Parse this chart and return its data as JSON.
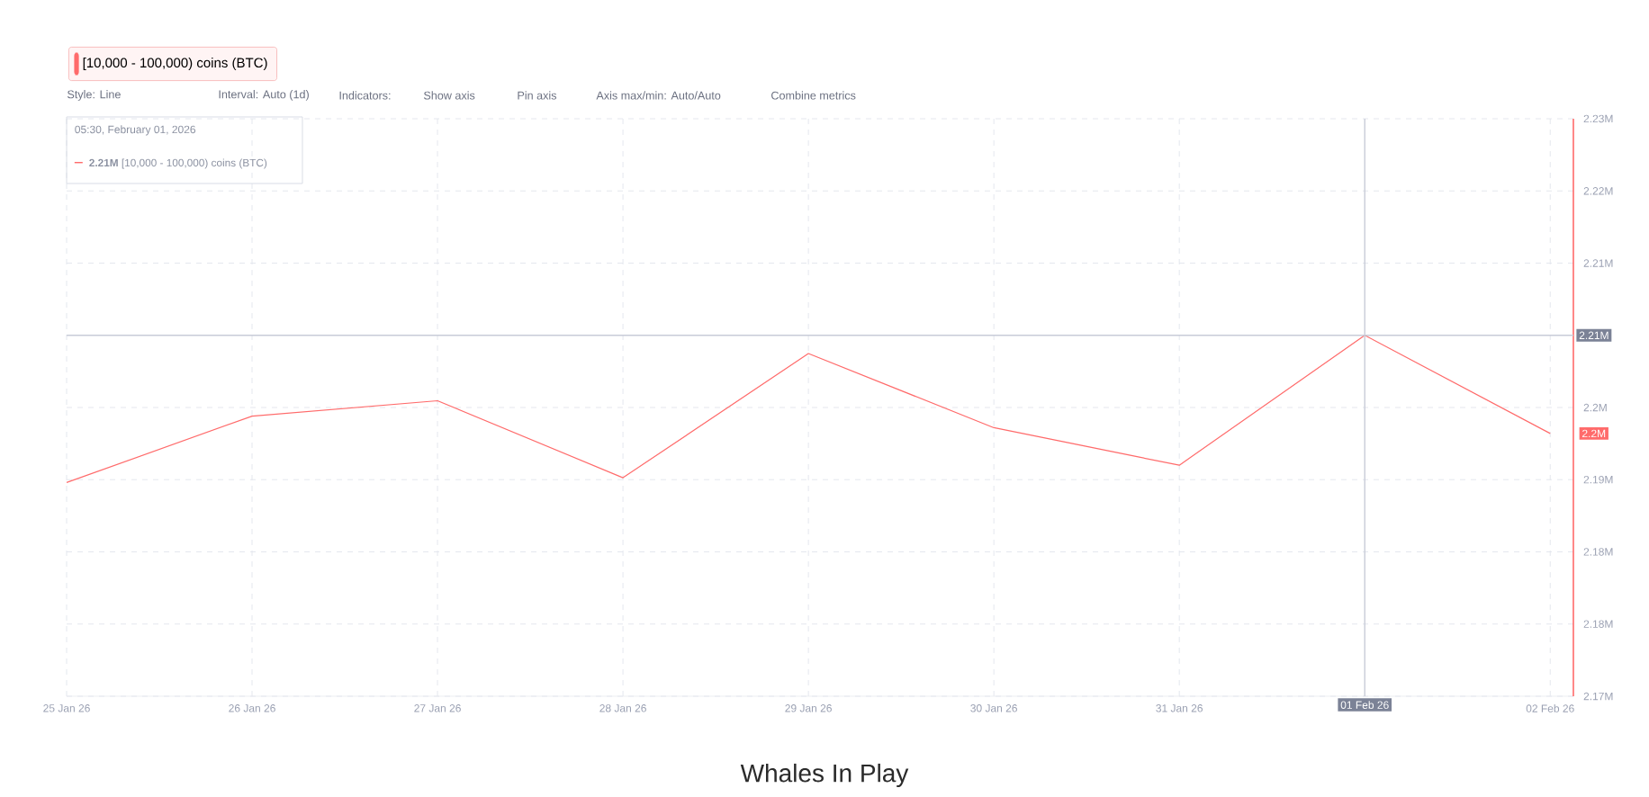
{
  "chart_data": {
    "type": "line",
    "x": [
      "2026-01-25",
      "2026-01-26",
      "2026-01-27",
      "2026-01-28",
      "2026-01-29",
      "2026-01-30",
      "2026-01-31",
      "2026-02-01",
      "2026-02-02"
    ],
    "series": [
      {
        "name": "[10,000 - 100,000) coins (BTC)",
        "color": "#ff6b6b",
        "values": [
          2.1922,
          2.1991,
          2.2007,
          2.1927,
          2.2056,
          2.1979,
          2.194,
          2.2075,
          2.1973
        ]
      }
    ],
    "xlim": [
      "2026-01-25",
      "2026-02-02T03:00"
    ],
    "xticks": [
      {
        "value": "2026-01-25",
        "label": "25 Jan 26"
      },
      {
        "value": "2026-01-26",
        "label": "26 Jan 26"
      },
      {
        "value": "2026-01-27",
        "label": "27 Jan 26"
      },
      {
        "value": "2026-01-28",
        "label": "28 Jan 26"
      },
      {
        "value": "2026-01-29",
        "label": "29 Jan 26"
      },
      {
        "value": "2026-01-30",
        "label": "30 Jan 26"
      },
      {
        "value": "2026-01-31",
        "label": "31 Jan 26"
      },
      {
        "value": "2026-02-02",
        "label": "02 Feb 26"
      }
    ],
    "ylim": [
      2.17,
      2.23
    ],
    "yticks": [
      {
        "value": 2.17,
        "label": "2.17M"
      },
      {
        "value": 2.1775,
        "label": "2.18M"
      },
      {
        "value": 2.185,
        "label": "2.18M"
      },
      {
        "value": 2.1925,
        "label": "2.19M"
      },
      {
        "value": 2.2,
        "label": "2.2M"
      },
      {
        "value": 2.215,
        "label": "2.21M"
      },
      {
        "value": 2.2225,
        "label": "2.22M"
      },
      {
        "value": 2.23,
        "label": "2.23M"
      }
    ],
    "grid": true,
    "legend": "top left",
    "line_style": "solid",
    "ref_lines": [
      {
        "axis": "x",
        "value": "2026-02-01",
        "label": "01 Feb 26",
        "color": "#c8ccd8"
      },
      {
        "axis": "y",
        "value": 2.2075,
        "label": "2.21M",
        "color": "#c8ccd8"
      }
    ],
    "annotations": [
      "Style: Line",
      "Interval: Auto (1d)",
      "Indicators:",
      "Show axis",
      "Pin axis",
      "Axis max/min: Auto/Auto",
      "Combine metrics",
      "05:30, February 01, 2026",
      "**2.21M** [10,000 - 100,000) coins (BTC)",
      "Whales In Play",
      {
        "text": "2.2M",
        "x": "2026-02-02",
        "y": 2.1973
      }
    ]
  }
}
